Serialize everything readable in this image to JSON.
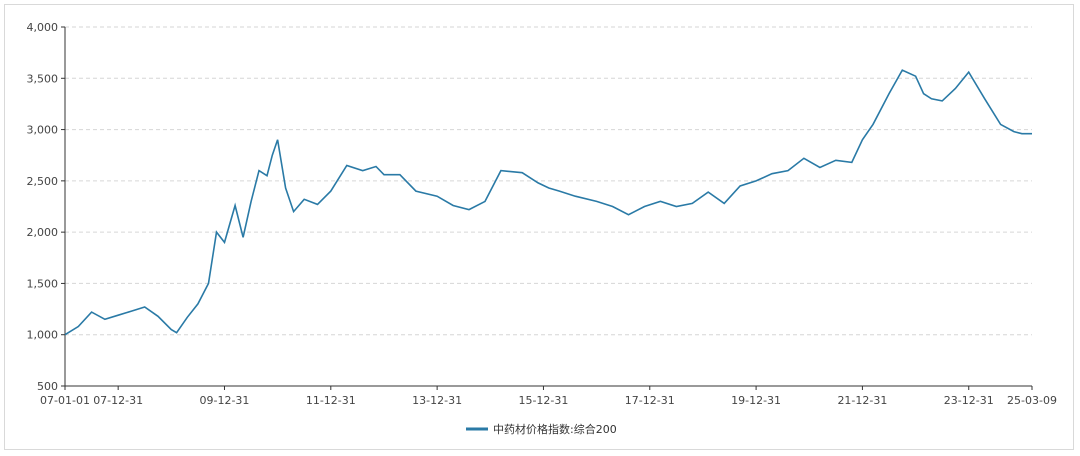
{
  "chart_data": {
    "type": "line",
    "title": "",
    "xlabel": "",
    "ylabel": "",
    "ylim": [
      500,
      4000
    ],
    "yticks": [
      "500",
      "1,000",
      "1,500",
      "2,000",
      "2,500",
      "3,000",
      "3,500",
      "4,000"
    ],
    "xticks": [
      "07-01-01",
      "07-12-31",
      "09-12-31",
      "11-12-31",
      "13-12-31",
      "15-12-31",
      "17-12-31",
      "19-12-31",
      "21-12-31",
      "23-12-31",
      "25-03-09"
    ],
    "grid": "horizontal dashed",
    "legend": "bottom-center",
    "color": "#2a7aa6",
    "series": [
      {
        "name": "中药材价格指数:综合200",
        "x": [
          2007.0,
          2007.25,
          2007.5,
          2007.75,
          2008.0,
          2008.25,
          2008.5,
          2008.75,
          2009.0,
          2009.1,
          2009.3,
          2009.5,
          2009.7,
          2009.85,
          2010.0,
          2010.1,
          2010.2,
          2010.35,
          2010.5,
          2010.65,
          2010.8,
          2010.9,
          2011.0,
          2011.15,
          2011.3,
          2011.5,
          2011.75,
          2012.0,
          2012.3,
          2012.6,
          2012.85,
          2013.0,
          2013.3,
          2013.6,
          2014.0,
          2014.3,
          2014.6,
          2014.9,
          2015.2,
          2015.6,
          2015.9,
          2016.1,
          2016.3,
          2016.6,
          2017.0,
          2017.3,
          2017.6,
          2017.9,
          2018.2,
          2018.5,
          2018.8,
          2019.1,
          2019.4,
          2019.7,
          2020.0,
          2020.3,
          2020.6,
          2020.9,
          2021.2,
          2021.5,
          2021.8,
          2022.0,
          2022.2,
          2022.5,
          2022.75,
          2023.0,
          2023.15,
          2023.3,
          2023.5,
          2023.75,
          2024.0,
          2024.3,
          2024.6,
          2024.85,
          2025.0,
          2025.19
        ],
        "y": [
          1000,
          1080,
          1220,
          1150,
          1190,
          1230,
          1270,
          1180,
          1050,
          1020,
          1170,
          1300,
          1500,
          2000,
          1900,
          2080,
          2260,
          1950,
          2300,
          2600,
          2550,
          2750,
          2900,
          2430,
          2200,
          2320,
          2270,
          2400,
          2650,
          2600,
          2640,
          2560,
          2560,
          2400,
          2350,
          2260,
          2220,
          2300,
          2600,
          2580,
          2480,
          2430,
          2400,
          2350,
          2300,
          2250,
          2170,
          2250,
          2300,
          2250,
          2280,
          2390,
          2280,
          2450,
          2500,
          2570,
          2600,
          2720,
          2630,
          2700,
          2680,
          2900,
          3050,
          3350,
          3580,
          3520,
          3350,
          3300,
          3280,
          3400,
          3560,
          3300,
          3050,
          2980,
          2960,
          2960
        ]
      }
    ]
  }
}
